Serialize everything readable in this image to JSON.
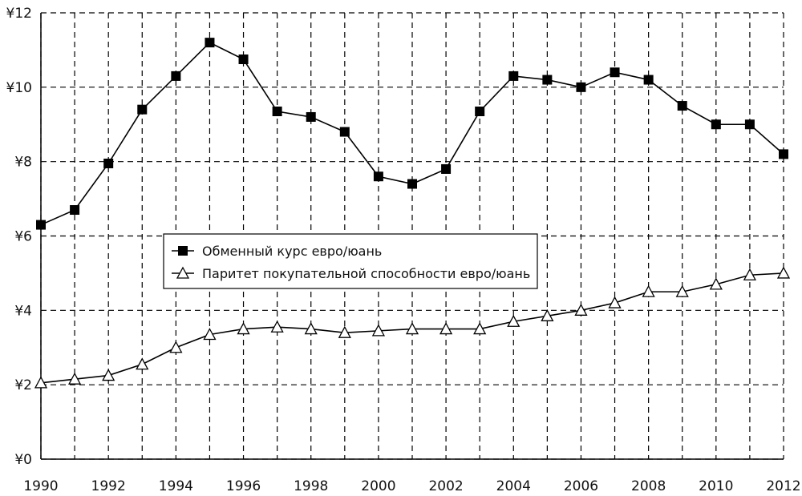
{
  "chart_data": {
    "type": "line",
    "title": "",
    "xlabel": "",
    "ylabel": "",
    "x": [
      1990,
      1991,
      1992,
      1993,
      1994,
      1995,
      1996,
      1997,
      1998,
      1999,
      2000,
      2001,
      2002,
      2003,
      2004,
      2005,
      2006,
      2007,
      2008,
      2009,
      2010,
      2011,
      2012
    ],
    "x_tick_labels": [
      "1990",
      "1992",
      "1994",
      "1996",
      "1998",
      "2000",
      "2002",
      "2004",
      "2006",
      "2008",
      "2010",
      "2012"
    ],
    "x_ticks": [
      1990,
      1992,
      1994,
      1996,
      1998,
      2000,
      2002,
      2004,
      2006,
      2008,
      2010,
      2012
    ],
    "y_tick_labels": [
      "¥0",
      "¥2",
      "¥4",
      "¥6",
      "¥8",
      "¥10",
      "¥12"
    ],
    "y_ticks": [
      0,
      2,
      4,
      6,
      8,
      10,
      12
    ],
    "xlim": [
      1990,
      2012
    ],
    "ylim": [
      0,
      12
    ],
    "grid": true,
    "grid_style": "dashed",
    "legend_position": "center-left",
    "series": [
      {
        "name": "Обменный курс евро/юань",
        "marker": "filled-square",
        "color": "#000000",
        "values": [
          6.3,
          6.7,
          7.95,
          9.4,
          10.3,
          11.2,
          10.75,
          9.35,
          9.2,
          8.8,
          7.6,
          7.4,
          7.8,
          9.35,
          10.3,
          10.2,
          10.0,
          10.4,
          10.2,
          9.5,
          9.0,
          9.0,
          8.2
        ]
      },
      {
        "name": "Паритет покупательной способности евро/юань",
        "marker": "open-triangle",
        "color": "#000000",
        "values": [
          2.05,
          2.15,
          2.25,
          2.55,
          3.0,
          3.35,
          3.5,
          3.55,
          3.5,
          3.4,
          3.45,
          3.5,
          3.5,
          3.5,
          3.7,
          3.85,
          4.0,
          4.2,
          4.5,
          4.5,
          4.7,
          4.95,
          5.0
        ]
      }
    ]
  }
}
